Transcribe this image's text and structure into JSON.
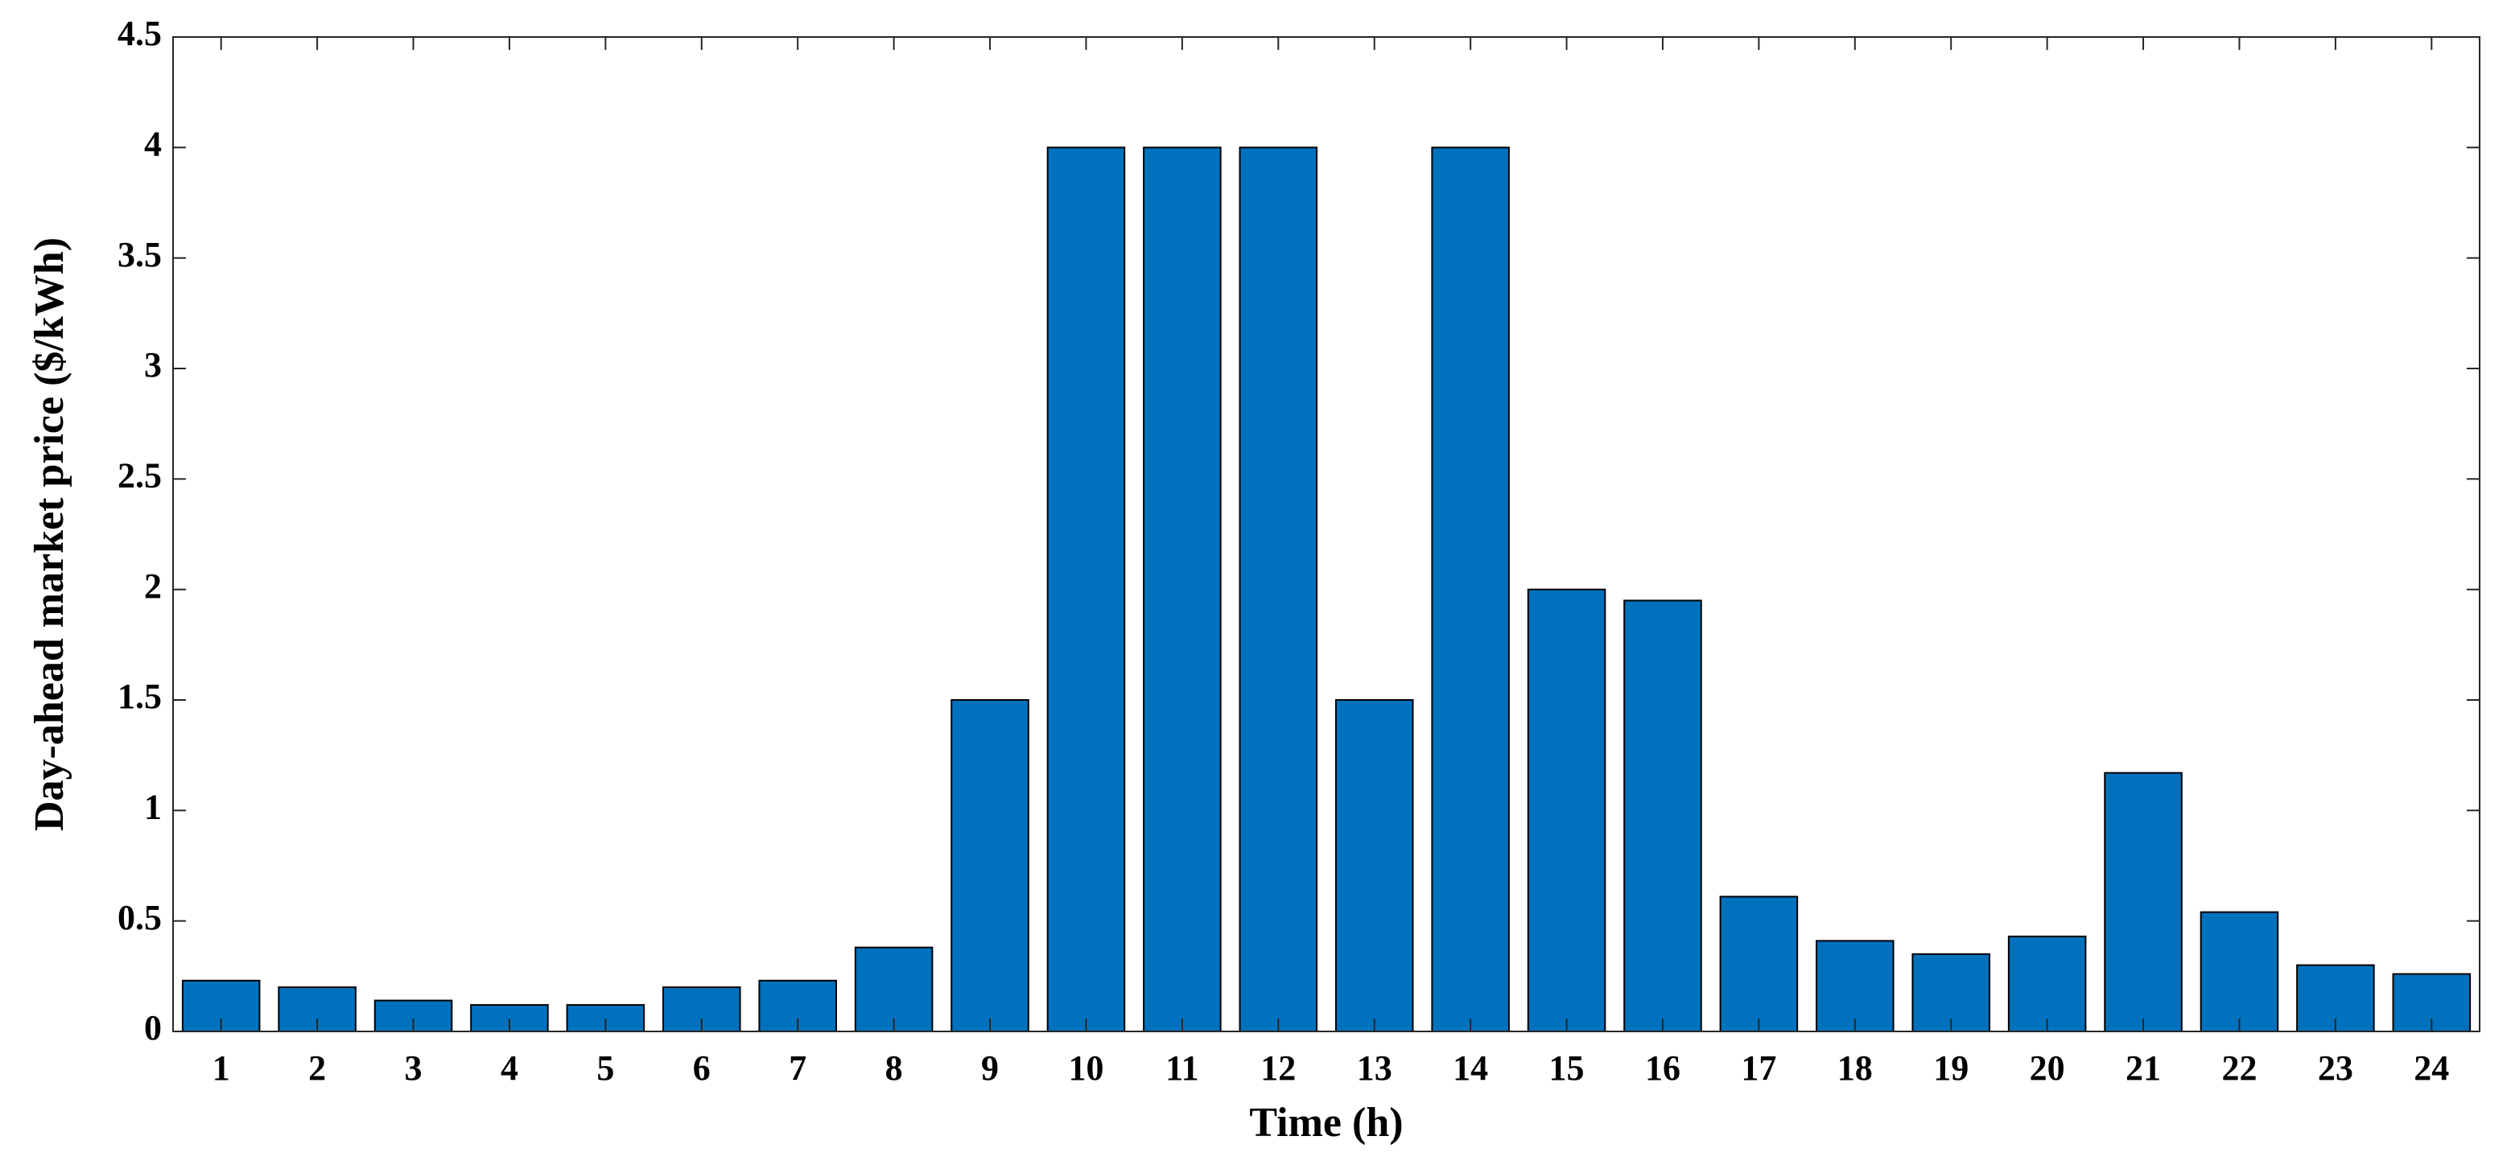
{
  "chart_data": {
    "type": "bar",
    "xlabel": "Time (h)",
    "ylabel": "Day-ahead market price ($/kWh)",
    "categories": [
      "1",
      "2",
      "3",
      "4",
      "5",
      "6",
      "7",
      "8",
      "9",
      "10",
      "11",
      "12",
      "13",
      "14",
      "15",
      "16",
      "17",
      "18",
      "19",
      "20",
      "21",
      "22",
      "23",
      "24"
    ],
    "values": [
      0.23,
      0.2,
      0.14,
      0.12,
      0.12,
      0.2,
      0.23,
      0.38,
      1.5,
      4,
      4,
      4,
      1.5,
      4,
      2,
      1.95,
      0.61,
      0.41,
      0.35,
      0.43,
      1.17,
      0.54,
      0.3,
      0.26
    ],
    "color": "#0072bd",
    "ylim": [
      0,
      4.5
    ],
    "yticks": [
      0,
      0.5,
      1,
      1.5,
      2,
      2.5,
      3,
      3.5,
      4,
      4.5
    ],
    "grid": false
  }
}
